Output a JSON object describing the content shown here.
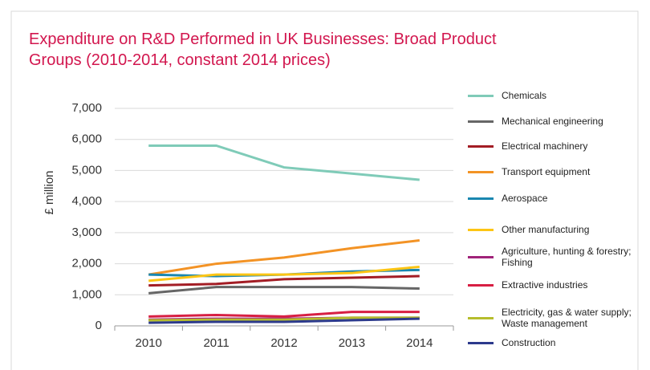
{
  "chart_data": {
    "type": "line",
    "title": "Expenditure on R&D Performed in UK Businesses: Broad Product Groups (2010-2014, constant 2014 prices)",
    "y_label": "£ million",
    "categories": [
      "2010",
      "2011",
      "2012",
      "2013",
      "2014"
    ],
    "ylim": [
      0,
      7000
    ],
    "yticks": [
      0,
      {
        "value": 1000,
        "label": "1,000"
      },
      {
        "value": 2000,
        "label": "2,000"
      },
      {
        "value": 3000,
        "label": "3,000"
      },
      {
        "value": 4000,
        "label": "4,000"
      },
      {
        "value": 5000,
        "label": "5,000"
      },
      {
        "value": 6000,
        "label": "6,000"
      },
      {
        "value": 7000,
        "label": "7,000"
      }
    ],
    "grid": true,
    "series": [
      {
        "name": "Chemicals",
        "color": "#7fcbb8",
        "values": [
          5800,
          5800,
          5100,
          4900,
          4700
        ]
      },
      {
        "name": "Mechanical engineering",
        "color": "#666666",
        "values": [
          1050,
          1250,
          1250,
          1250,
          1200
        ]
      },
      {
        "name": "Electrical machinery",
        "color": "#a31d25",
        "values": [
          1300,
          1350,
          1500,
          1550,
          1600
        ]
      },
      {
        "name": "Transport equipment",
        "color": "#f39325",
        "values": [
          1650,
          2000,
          2200,
          2500,
          2750
        ]
      },
      {
        "name": "Aerospace",
        "color": "#1a87b0",
        "values": [
          1650,
          1600,
          1650,
          1750,
          1800
        ]
      },
      {
        "name": "Other manufacturing",
        "color": "#fdc514",
        "values": [
          1450,
          1650,
          1650,
          1700,
          1900
        ]
      },
      {
        "name": "Agriculture, hunting & forestry; Fishing",
        "color": "#a0237a",
        "values": [
          200,
          230,
          230,
          260,
          260
        ]
      },
      {
        "name": "Extractive industries",
        "color": "#d71f43",
        "values": [
          300,
          350,
          300,
          450,
          450
        ]
      },
      {
        "name": "Electricity, gas & water supply; Waste management",
        "color": "#b6bd2c",
        "values": [
          180,
          200,
          200,
          260,
          260
        ]
      },
      {
        "name": "Construction",
        "color": "#2c3a8c",
        "values": [
          100,
          130,
          130,
          180,
          230
        ]
      }
    ]
  }
}
